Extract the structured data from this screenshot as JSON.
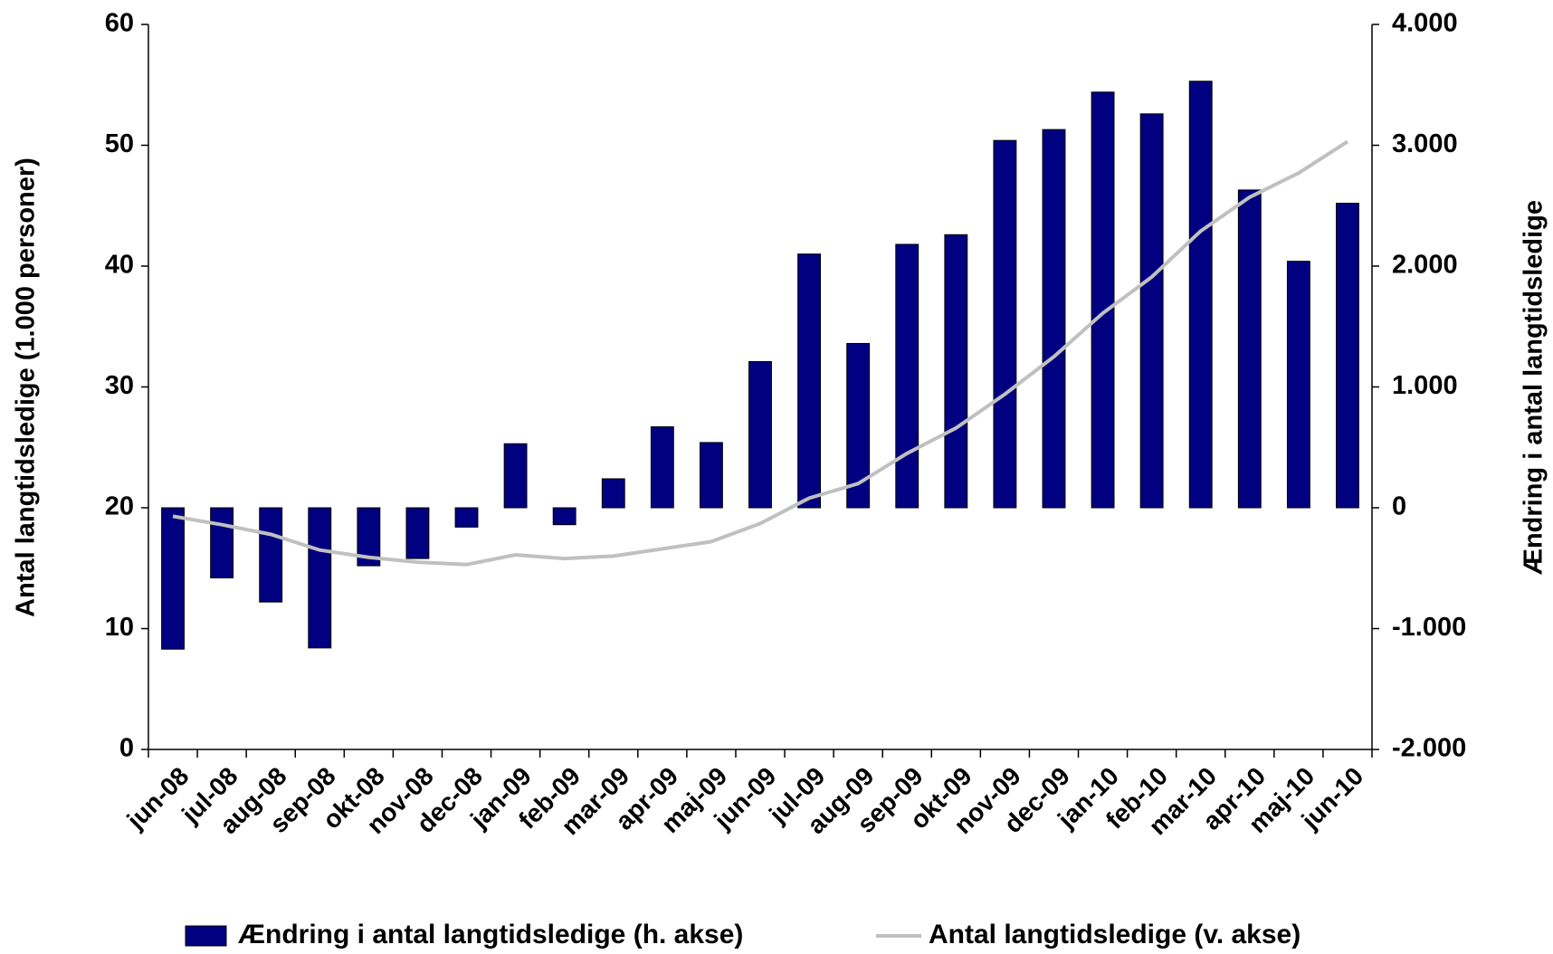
{
  "chart_data": {
    "type": "bar-line",
    "y_label": "Antal langtidsledige (1.000 personer)",
    "y2_label": "Ændring i antal langtidsledige",
    "categories": [
      "jun-08",
      "jul-08",
      "aug-08",
      "sep-08",
      "okt-08",
      "nov-08",
      "dec-08",
      "jan-09",
      "feb-09",
      "mar-09",
      "apr-09",
      "maj-09",
      "jun-09",
      "jul-09",
      "aug-09",
      "sep-09",
      "okt-09",
      "nov-09",
      "dec-09",
      "jan-10",
      "feb-10",
      "mar-10",
      "apr-10",
      "maj-10",
      "jun-10"
    ],
    "series": [
      {
        "name": "Ændring i antal langtidsledige (h. akse)",
        "type": "bar",
        "axis": "y2",
        "color": "#000080",
        "values": [
          -1170,
          -580,
          -780,
          -1160,
          -480,
          -420,
          -160,
          530,
          -140,
          240,
          670,
          540,
          1210,
          2100,
          1360,
          2180,
          2260,
          3040,
          3130,
          3440,
          3260,
          3530,
          2630,
          2040,
          2520
        ]
      },
      {
        "name": "Antal langtidsledige (v. akse)",
        "type": "line",
        "axis": "y",
        "color": "#c0c0c0",
        "values": [
          19.3,
          18.6,
          17.8,
          16.5,
          15.9,
          15.5,
          15.3,
          16.1,
          15.8,
          16.0,
          16.6,
          17.2,
          18.7,
          20.8,
          22.0,
          24.5,
          26.6,
          29.4,
          32.5,
          36.1,
          39.1,
          42.9,
          45.7,
          47.7,
          50.3
        ]
      }
    ],
    "ylim": [
      0,
      60
    ],
    "yticks": [
      0,
      10,
      20,
      30,
      40,
      50,
      60
    ],
    "y2lim": [
      -2000,
      4000
    ],
    "y2ticks": [
      {
        "value": -2000,
        "label": "-2.000"
      },
      {
        "value": -1000,
        "label": "-1.000"
      },
      0,
      {
        "value": 1000,
        "label": "1.000"
      },
      {
        "value": 2000,
        "label": "2.000"
      },
      {
        "value": 3000,
        "label": "3.000"
      },
      {
        "value": 4000,
        "label": "4.000"
      }
    ],
    "grid": false,
    "legend": "bottom"
  }
}
